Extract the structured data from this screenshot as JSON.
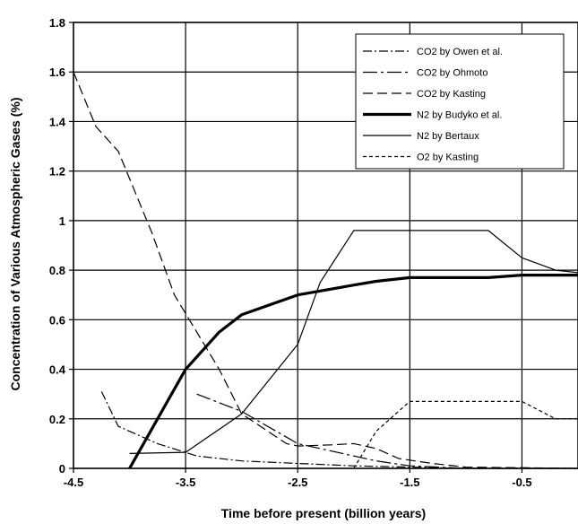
{
  "chart_data": {
    "type": "line",
    "title": "",
    "xlabel": "Time before present (billion years)",
    "ylabel": "Concentration of Various Atmospheric Gases (%)",
    "xlim": [
      -4.5,
      0
    ],
    "ylim": [
      0,
      1.8
    ],
    "x_ticks": [
      -4.5,
      -3.5,
      -2.5,
      -1.5,
      -0.5
    ],
    "x_tick_labels": [
      "-4.5",
      "-3.5",
      "-2.5",
      "-1.5",
      "-0.5"
    ],
    "y_ticks": [
      0,
      0.2,
      0.4,
      0.6,
      0.8,
      1,
      1.2,
      1.4,
      1.6,
      1.8
    ],
    "y_tick_labels": [
      "0",
      "0.2",
      "0.4",
      "0.6",
      "0.8",
      "1",
      "1.2",
      "1.4",
      "1.6",
      "1.8"
    ],
    "grid": true,
    "legend_position": "top-right",
    "series": [
      {
        "name": "CO2 by Owen et al.",
        "dash": "dash-dot",
        "points": [
          [
            -4.25,
            0.31
          ],
          [
            -4.1,
            0.17
          ],
          [
            -3.75,
            0.1
          ],
          [
            -3.4,
            0.05
          ],
          [
            -3.0,
            0.03
          ],
          [
            -2.5,
            0.02
          ],
          [
            -2.0,
            0.01
          ],
          [
            -1.5,
            0.005
          ],
          [
            -1.0,
            0.0
          ],
          [
            0.0,
            0.0
          ]
        ]
      },
      {
        "name": "CO2 by Ohmoto",
        "dash": "long-dash-dot",
        "points": [
          [
            -3.4,
            0.3
          ],
          [
            -3.0,
            0.23
          ],
          [
            -2.5,
            0.1
          ],
          [
            -2.0,
            0.05
          ],
          [
            -1.8,
            0.03
          ],
          [
            -1.5,
            0.01
          ],
          [
            -1.0,
            0.0
          ],
          [
            0.0,
            0.0
          ]
        ]
      },
      {
        "name": "CO2 by Kasting",
        "dash": "dash",
        "points": [
          [
            -4.5,
            1.6
          ],
          [
            -4.3,
            1.38
          ],
          [
            -4.1,
            1.28
          ],
          [
            -3.8,
            0.95
          ],
          [
            -3.6,
            0.7
          ],
          [
            -3.4,
            0.55
          ],
          [
            -3.2,
            0.4
          ],
          [
            -3.0,
            0.22
          ],
          [
            -2.6,
            0.1
          ],
          [
            -2.5,
            0.09
          ],
          [
            -2.2,
            0.095
          ],
          [
            -2.0,
            0.1
          ],
          [
            -1.8,
            0.08
          ],
          [
            -1.6,
            0.04
          ],
          [
            -1.3,
            0.02
          ],
          [
            -1.0,
            0.005
          ],
          [
            0.0,
            0.0
          ]
        ]
      },
      {
        "name": "N2  by Budyko et al.",
        "dash": "solid-thick",
        "points": [
          [
            -4.0,
            0.0
          ],
          [
            -3.5,
            0.4
          ],
          [
            -3.4,
            0.45
          ],
          [
            -3.2,
            0.55
          ],
          [
            -3.0,
            0.62
          ],
          [
            -2.5,
            0.7
          ],
          [
            -2.0,
            0.74
          ],
          [
            -1.8,
            0.755
          ],
          [
            -1.5,
            0.77
          ],
          [
            -1.0,
            0.77
          ],
          [
            -0.8,
            0.77
          ],
          [
            -0.5,
            0.78
          ],
          [
            0.0,
            0.78
          ]
        ]
      },
      {
        "name": "N2  by Bertaux",
        "dash": "solid",
        "points": [
          [
            -4.0,
            0.06
          ],
          [
            -3.5,
            0.065
          ],
          [
            -3.0,
            0.22
          ],
          [
            -2.5,
            0.5
          ],
          [
            -2.3,
            0.75
          ],
          [
            -2.0,
            0.96
          ],
          [
            -1.5,
            0.96
          ],
          [
            -0.8,
            0.96
          ],
          [
            -0.5,
            0.85
          ],
          [
            -0.2,
            0.8
          ],
          [
            0.0,
            0.79
          ]
        ]
      },
      {
        "name": "O2  by Kasting",
        "dash": "short-dash",
        "points": [
          [
            -2.0,
            0.0
          ],
          [
            -1.8,
            0.15
          ],
          [
            -1.5,
            0.27
          ],
          [
            -1.0,
            0.27
          ],
          [
            -0.5,
            0.27
          ],
          [
            -0.2,
            0.2
          ],
          [
            0.0,
            0.2
          ]
        ]
      }
    ]
  }
}
